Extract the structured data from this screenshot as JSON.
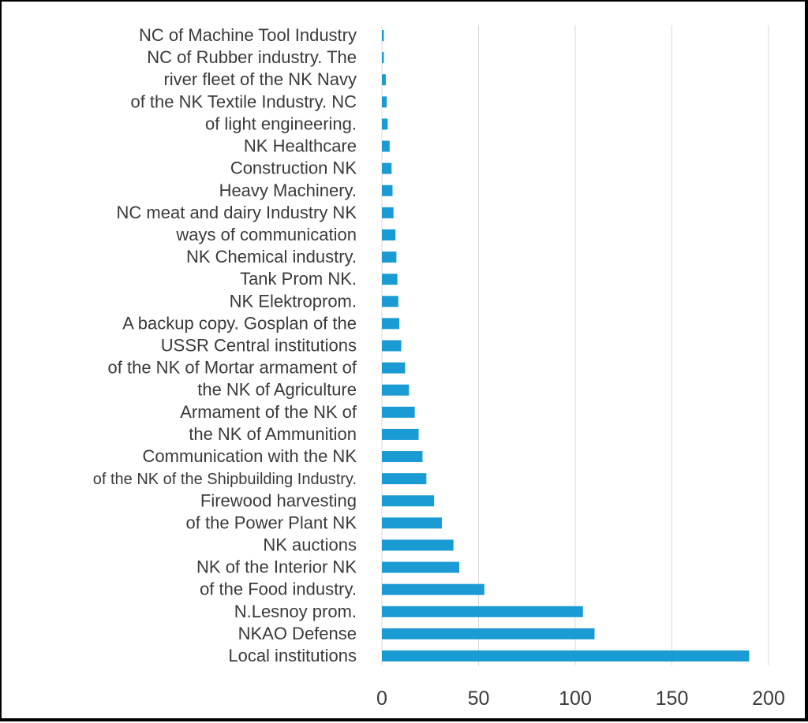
{
  "chart_data": {
    "type": "bar",
    "orientation": "horizontal",
    "title": "",
    "xlabel": "",
    "ylabel": "",
    "categories": [
      "NC of Machine Tool Industry",
      "NC of Rubber industry. The",
      "river fleet of the NK Navy",
      "of the NK Textile Industry. NC",
      "of light engineering.",
      "NK Healthcare",
      "Construction NK",
      "Heavy Machinery.",
      "NC meat and dairy Industry NK",
      "ways of communication",
      "NK Chemical industry.",
      "Tank Prom NK.",
      "NK Elektroprom.",
      "A backup copy. Gosplan of the",
      "USSR Central institutions",
      "of the NK of Mortar armament of",
      "the NK of Agriculture",
      "Armament of the NK of",
      "the NK of Ammunition",
      "Communication with the NK",
      "of the NK of the Shipbuilding Industry.",
      "Firewood harvesting",
      "of the Power Plant NK",
      "NK auctions",
      "NK of the Interior NK",
      "of the Food industry.",
      "N.Lesnoy prom.",
      "NKAO Defense",
      "Local institutions"
    ],
    "values": [
      1,
      1,
      2,
      2.5,
      3,
      4,
      5,
      5.5,
      6,
      7,
      7.5,
      8,
      8.5,
      9,
      10,
      12,
      14,
      17,
      19,
      21,
      23,
      27,
      31,
      37,
      40,
      53,
      104,
      110,
      190
    ],
    "xlim": [
      0,
      200
    ],
    "xticks": [
      "0",
      "50",
      "100",
      "150",
      "200"
    ],
    "grid": "vertical",
    "legend": "none",
    "bar_color": "#1b9bd4",
    "grid_color": "#d9d9d9"
  }
}
